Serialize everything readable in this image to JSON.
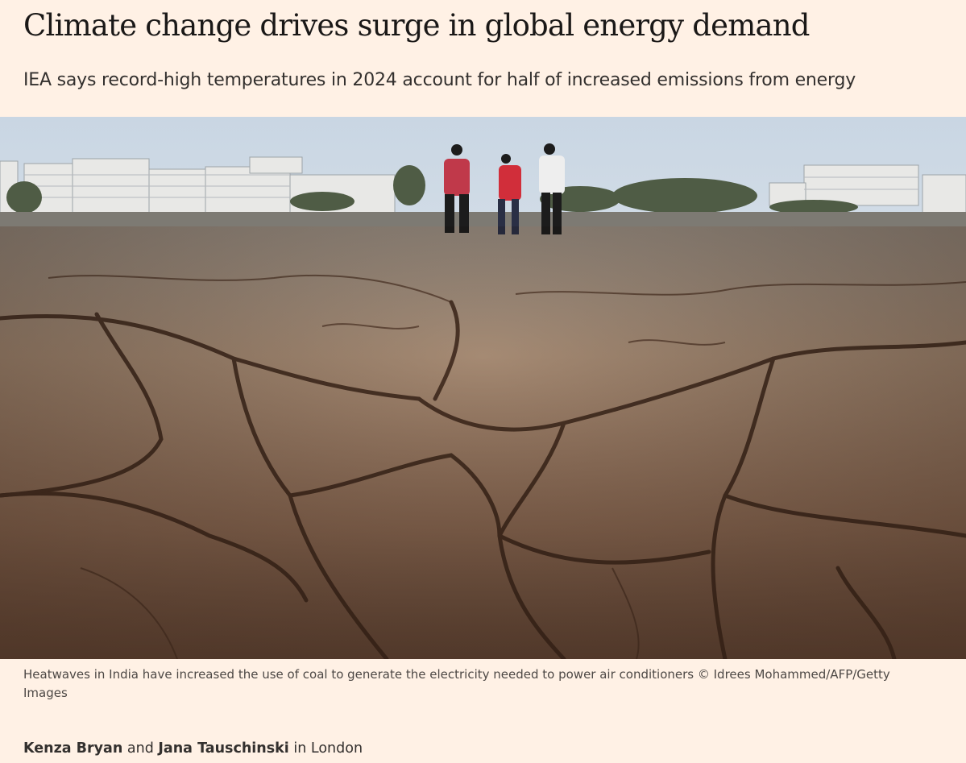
{
  "header": {
    "title": "Climate change drives surge in global energy demand",
    "subtitle": "IEA says record-high temperatures in 2024 account for half of increased emissions from energy"
  },
  "image": {
    "caption": "Heatwaves in India have increased the use of coal to generate the electricity needed to power air conditioners © Idrees Mohammed/AFP/Getty Images"
  },
  "byline": {
    "author_1": "Kenza Bryan",
    "connector": "and",
    "author_2": "Jana Tauschinski",
    "location": "in London"
  }
}
